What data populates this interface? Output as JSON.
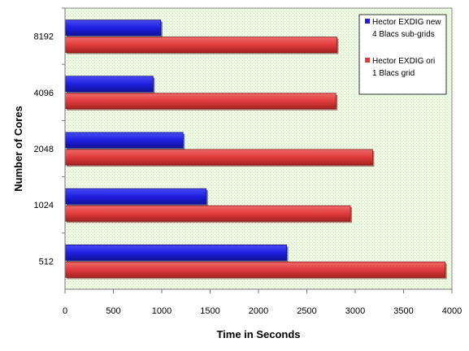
{
  "chart_data": {
    "type": "bar",
    "orientation": "horizontal",
    "categories": [
      "512",
      "1024",
      "2048",
      "4096",
      "8192"
    ],
    "series": [
      {
        "name": [
          "Hector EXDIG new",
          "4 Blacs sub-grids"
        ],
        "color": "#1f1fe0",
        "values": [
          2290,
          1460,
          1220,
          910,
          990
        ]
      },
      {
        "name": [
          "Hector EXDIG ori",
          "1 Blacs grid"
        ],
        "color": "#e03c3c",
        "values": [
          3930,
          2950,
          3180,
          2800,
          2810
        ]
      }
    ],
    "xlabel": "Time in Seconds",
    "ylabel": "Number of Cores",
    "xlim": [
      0,
      4000
    ],
    "xticks": [
      0,
      500,
      1000,
      1500,
      2000,
      2500,
      3000,
      3500,
      4000
    ],
    "grid": false,
    "legend": "top-right",
    "plot_background": "#e9f7df"
  }
}
